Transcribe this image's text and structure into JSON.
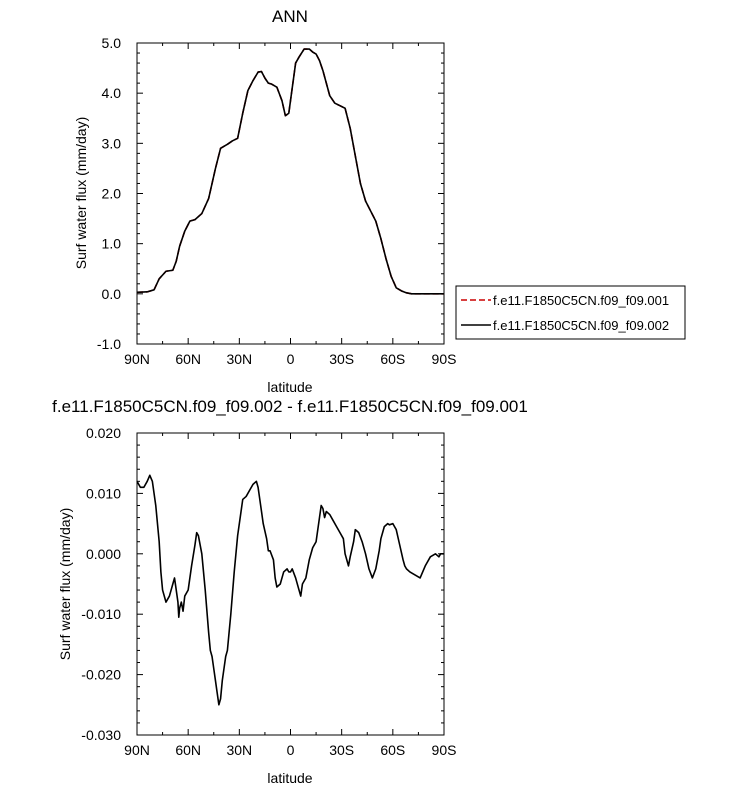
{
  "chart_data": [
    {
      "type": "line",
      "title": "ANN",
      "xlabel": "latitude",
      "ylabel": "Surf water flux (mm/day)",
      "xlim": [
        -90,
        90
      ],
      "ylim": [
        -1.0,
        5.0
      ],
      "x_ticks": [
        -90,
        -60,
        -30,
        0,
        30,
        60,
        90
      ],
      "x_tick_labels": [
        "90N",
        "60N",
        "30N",
        "0",
        "30S",
        "60S",
        "90S"
      ],
      "y_ticks": [
        -1.0,
        0.0,
        1.0,
        2.0,
        3.0,
        4.0,
        5.0
      ],
      "y_tick_labels": [
        "-1.0",
        "0.0",
        "1.0",
        "2.0",
        "3.0",
        "4.0",
        "5.0"
      ],
      "grid": false,
      "legend_position": "right",
      "series": [
        {
          "name": "f.e11.F1850C5CN.f09_f09.001",
          "color": "#cc0000",
          "dash": "dashed",
          "x": [
            -90,
            -84,
            -80,
            -77,
            -73,
            -69,
            -67,
            -65,
            -62,
            -59,
            -56,
            -52,
            -48,
            -44,
            -41,
            -37,
            -34,
            -31,
            -28,
            -25,
            -22,
            -19,
            -17,
            -15,
            -13,
            -11,
            -8,
            -5,
            -3,
            -1,
            1,
            3,
            5,
            8,
            11,
            13,
            15,
            17,
            19,
            21,
            23,
            26,
            29,
            32,
            35,
            38,
            41,
            44,
            47,
            50,
            53,
            56,
            59,
            62,
            65,
            68,
            71,
            74,
            77,
            80,
            83,
            86,
            90
          ],
          "y": [
            0.03,
            0.04,
            0.08,
            0.3,
            0.45,
            0.47,
            0.65,
            0.95,
            1.25,
            1.45,
            1.48,
            1.6,
            1.9,
            2.5,
            2.9,
            2.98,
            3.05,
            3.1,
            3.6,
            4.05,
            4.25,
            4.42,
            4.43,
            4.3,
            4.2,
            4.18,
            4.12,
            3.85,
            3.55,
            3.6,
            4.1,
            4.6,
            4.72,
            4.88,
            4.88,
            4.82,
            4.78,
            4.65,
            4.45,
            4.2,
            3.95,
            3.8,
            3.75,
            3.7,
            3.3,
            2.75,
            2.2,
            1.85,
            1.65,
            1.45,
            1.1,
            0.7,
            0.35,
            0.12,
            0.06,
            0.02,
            0.0,
            0.0,
            0.0,
            0.0,
            0.0,
            0.0,
            0.0
          ]
        },
        {
          "name": "f.e11.F1850C5CN.f09_f09.002",
          "color": "#000000",
          "dash": "solid",
          "x": [
            -90,
            -84,
            -80,
            -77,
            -73,
            -69,
            -67,
            -65,
            -62,
            -59,
            -56,
            -52,
            -48,
            -44,
            -41,
            -37,
            -34,
            -31,
            -28,
            -25,
            -22,
            -19,
            -17,
            -15,
            -13,
            -11,
            -8,
            -5,
            -3,
            -1,
            1,
            3,
            5,
            8,
            11,
            13,
            15,
            17,
            19,
            21,
            23,
            26,
            29,
            32,
            35,
            38,
            41,
            44,
            47,
            50,
            53,
            56,
            59,
            62,
            65,
            68,
            71,
            74,
            77,
            80,
            83,
            86,
            90
          ],
          "y": [
            0.03,
            0.04,
            0.08,
            0.3,
            0.45,
            0.47,
            0.65,
            0.95,
            1.25,
            1.45,
            1.48,
            1.6,
            1.9,
            2.5,
            2.9,
            2.98,
            3.05,
            3.1,
            3.6,
            4.05,
            4.25,
            4.42,
            4.43,
            4.3,
            4.2,
            4.18,
            4.12,
            3.85,
            3.55,
            3.6,
            4.1,
            4.6,
            4.72,
            4.88,
            4.88,
            4.82,
            4.78,
            4.65,
            4.45,
            4.2,
            3.95,
            3.8,
            3.75,
            3.7,
            3.3,
            2.75,
            2.2,
            1.85,
            1.65,
            1.45,
            1.1,
            0.7,
            0.35,
            0.12,
            0.06,
            0.02,
            0.0,
            0.0,
            0.0,
            0.0,
            0.0,
            0.0,
            0.0
          ]
        }
      ]
    },
    {
      "type": "line",
      "title": "f.e11.F1850C5CN.f09_f09.002 - f.e11.F1850C5CN.f09_f09.001",
      "xlabel": "latitude",
      "ylabel": "Surf water flux (mm/day)",
      "xlim": [
        -90,
        90
      ],
      "ylim": [
        -0.03,
        0.02
      ],
      "x_ticks": [
        -90,
        -60,
        -30,
        0,
        30,
        60,
        90
      ],
      "x_tick_labels": [
        "90N",
        "60N",
        "30N",
        "0",
        "30S",
        "60S",
        "90S"
      ],
      "y_ticks": [
        -0.03,
        -0.02,
        -0.01,
        0.0,
        0.01,
        0.02
      ],
      "y_tick_labels": [
        "-0.030",
        "-0.020",
        "-0.010",
        "0.000",
        "0.010",
        "0.020"
      ],
      "grid": false,
      "series": [
        {
          "color": "#000000",
          "dash": "solid",
          "x": [
            -90,
            -88,
            -86,
            -84,
            -82.5,
            -81,
            -79,
            -77,
            -76,
            -75,
            -73,
            -71,
            -70,
            -69,
            -68,
            -67,
            -66,
            -65.5,
            -65,
            -64,
            -63,
            -62,
            -60,
            -58,
            -56,
            -55,
            -54,
            -52,
            -50,
            -48,
            -47,
            -46,
            -45,
            -44,
            -43,
            -42,
            -41,
            -40,
            -39,
            -38,
            -37,
            -35,
            -33,
            -31,
            -29,
            -28,
            -26,
            -24,
            -22,
            -20,
            -19,
            -18,
            -17,
            -16,
            -14,
            -13,
            -12,
            -10,
            -9,
            -8,
            -6,
            -5,
            -4,
            -2,
            -1,
            0,
            1,
            3,
            5,
            6,
            7,
            9,
            11,
            13,
            15,
            17,
            18,
            19,
            20,
            21,
            23,
            25,
            27,
            29,
            31,
            32,
            34,
            35,
            37,
            38,
            40,
            42,
            44,
            46,
            48,
            50,
            52,
            53,
            55,
            57,
            58,
            60,
            62,
            64,
            66,
            67,
            68,
            70,
            73,
            76,
            79,
            82,
            85,
            87,
            88,
            90
          ],
          "y": [
            0.012,
            0.011,
            0.011,
            0.012,
            0.013,
            0.012,
            0.008,
            0.002,
            -0.003,
            -0.006,
            -0.008,
            -0.007,
            -0.006,
            -0.005,
            -0.004,
            -0.006,
            -0.008,
            -0.0105,
            -0.009,
            -0.008,
            -0.0095,
            -0.007,
            -0.006,
            -0.002,
            0.0015,
            0.0035,
            0.003,
            0.0,
            -0.006,
            -0.013,
            -0.016,
            -0.017,
            -0.019,
            -0.021,
            -0.023,
            -0.025,
            -0.024,
            -0.021,
            -0.019,
            -0.017,
            -0.016,
            -0.01,
            -0.003,
            0.003,
            0.007,
            0.009,
            0.0095,
            0.0105,
            0.0115,
            0.012,
            0.011,
            0.009,
            0.007,
            0.005,
            0.0025,
            0.0005,
            0.0005,
            -0.001,
            -0.004,
            -0.0055,
            -0.005,
            -0.004,
            -0.003,
            -0.0025,
            -0.003,
            -0.003,
            -0.0025,
            -0.004,
            -0.006,
            -0.007,
            -0.005,
            -0.004,
            -0.001,
            0.001,
            0.002,
            0.006,
            0.008,
            0.0075,
            0.006,
            0.007,
            0.0065,
            0.0055,
            0.0045,
            0.0035,
            0.0025,
            0.0,
            -0.002,
            -0.0005,
            0.002,
            0.004,
            0.0035,
            0.002,
            0.0,
            -0.0025,
            -0.004,
            -0.0025,
            0.0005,
            0.0025,
            0.0045,
            0.005,
            0.0048,
            0.005,
            0.004,
            0.0015,
            -0.001,
            -0.002,
            -0.0025,
            -0.003,
            -0.0035,
            -0.004,
            -0.002,
            -0.0005,
            0.0,
            -0.0005,
            0.0,
            0.0
          ]
        }
      ]
    }
  ]
}
